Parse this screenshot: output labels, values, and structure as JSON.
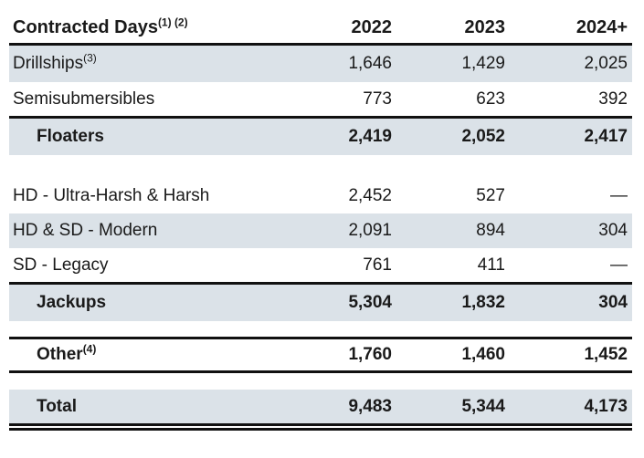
{
  "title": "Contracted Days table",
  "colors": {
    "row_shade": "#dbe2e8",
    "rule": "#111111",
    "text": "#1a1a1a",
    "background": "#ffffff"
  },
  "table": {
    "header": {
      "label": "Contracted Days",
      "sup": "(1) (2)",
      "columns": [
        "2022",
        "2023",
        "2024+"
      ]
    },
    "rows": [
      {
        "label": "Drillships",
        "sup": "(3)",
        "values": [
          "1,646",
          "1,429",
          "2,025"
        ]
      },
      {
        "label": "Semisubmersibles",
        "values": [
          "773",
          "623",
          "392"
        ]
      },
      {
        "label": "Floaters",
        "values": [
          "2,419",
          "2,052",
          "2,417"
        ]
      },
      {
        "label": "HD - Ultra-Harsh & Harsh",
        "values": [
          "2,452",
          "527",
          "—"
        ]
      },
      {
        "label": "HD & SD - Modern",
        "values": [
          "2,091",
          "894",
          "304"
        ]
      },
      {
        "label": "SD - Legacy",
        "values": [
          "761",
          "411",
          "—"
        ]
      },
      {
        "label": "Jackups",
        "values": [
          "5,304",
          "1,832",
          "304"
        ]
      },
      {
        "label": "Other",
        "sup": "(4)",
        "values": [
          "1,760",
          "1,460",
          "1,452"
        ]
      },
      {
        "label": "Total",
        "values": [
          "9,483",
          "5,344",
          "4,173"
        ]
      }
    ]
  }
}
